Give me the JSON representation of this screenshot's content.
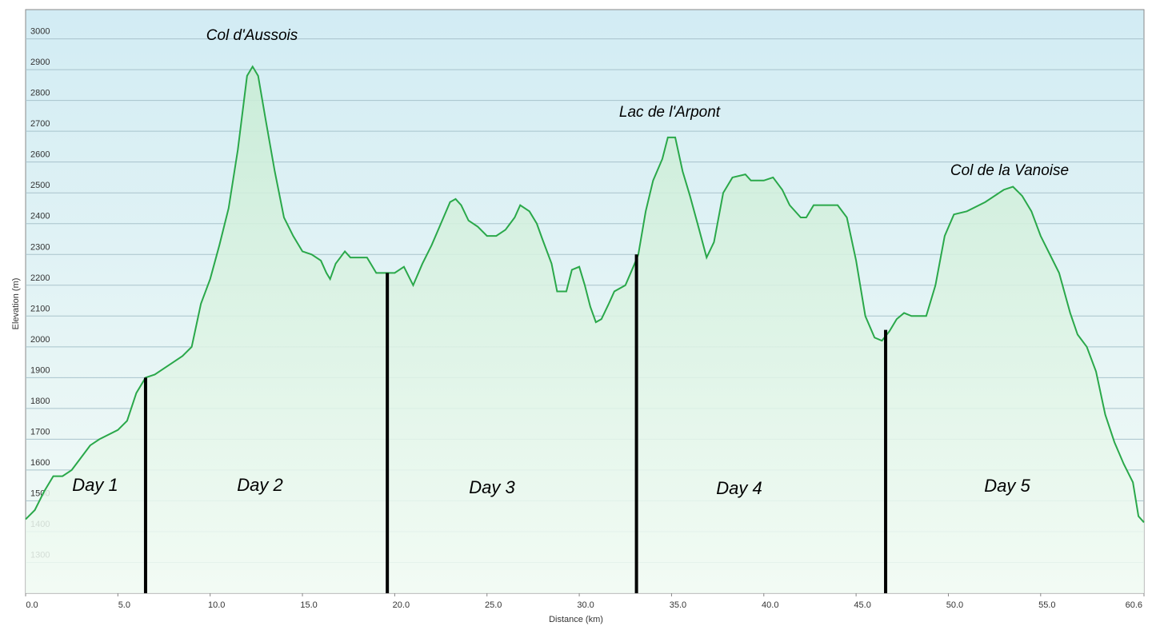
{
  "chart_data": {
    "type": "line",
    "xlabel": "Distance  (km)",
    "ylabel": "Elevation (m)",
    "xlim": [
      0,
      60.6
    ],
    "ylim": [
      1200,
      3095
    ],
    "xticks": [
      {
        "value": 0,
        "label": "0.0"
      },
      {
        "value": 5,
        "label": "5.0"
      },
      {
        "value": 10,
        "label": "10.0"
      },
      {
        "value": 15,
        "label": "15.0"
      },
      {
        "value": 20,
        "label": "20.0"
      },
      {
        "value": 25,
        "label": "25.0"
      },
      {
        "value": 30,
        "label": "30.0"
      },
      {
        "value": 35,
        "label": "35.0"
      },
      {
        "value": 40,
        "label": "40.0"
      },
      {
        "value": 45,
        "label": "45.0"
      },
      {
        "value": 50,
        "label": "50.0"
      },
      {
        "value": 55,
        "label": "55.0"
      },
      {
        "value": 60.6,
        "label": "60.6"
      }
    ],
    "yticks": [
      1300,
      1400,
      1500,
      1600,
      1700,
      1800,
      1900,
      2000,
      2100,
      2200,
      2300,
      2400,
      2500,
      2600,
      2700,
      2800,
      2900,
      3000
    ],
    "grid": true,
    "series": [
      {
        "name": "Elevation",
        "color": "#2aa84a",
        "x": [
          0,
          0.5,
          1,
          1.5,
          2,
          2.5,
          3,
          3.5,
          4,
          5,
          5.5,
          6,
          6.5,
          7,
          8,
          8.5,
          9,
          9.5,
          10,
          10.5,
          11,
          11.5,
          12,
          12.3,
          12.6,
          13,
          13.5,
          14,
          14.5,
          15,
          15.5,
          16,
          16.3,
          16.5,
          16.8,
          17.3,
          17.6,
          18,
          18.5,
          19,
          19.6,
          20,
          20.5,
          21,
          21.5,
          22,
          22.5,
          23,
          23.3,
          23.6,
          24,
          24.5,
          25,
          25.5,
          26,
          26.5,
          26.8,
          27.3,
          27.7,
          28,
          28.5,
          28.8,
          29.3,
          29.6,
          30,
          30.3,
          30.6,
          30.9,
          31.2,
          31.6,
          31.9,
          32.5,
          33,
          33.2,
          33.6,
          34,
          34.5,
          34.8,
          35.2,
          35.6,
          36,
          36.5,
          36.9,
          37.3,
          37.8,
          38.3,
          39,
          39.3,
          40,
          40.5,
          41,
          41.4,
          42,
          42.3,
          42.7,
          44,
          44.5,
          45,
          45.5,
          46,
          46.4,
          46.8,
          47.2,
          47.6,
          48,
          48.8,
          49.3,
          49.8,
          50.3,
          51,
          52,
          53,
          53.5,
          54,
          54.5,
          55,
          55.5,
          56,
          56.6,
          57,
          57.5,
          58,
          58.5,
          59,
          59.5,
          60,
          60.3,
          60.6
        ],
        "values": [
          1440,
          1470,
          1530,
          1580,
          1580,
          1600,
          1640,
          1680,
          1700,
          1730,
          1760,
          1850,
          1900,
          1910,
          1950,
          1970,
          2000,
          2140,
          2220,
          2330,
          2450,
          2640,
          2880,
          2910,
          2880,
          2740,
          2570,
          2420,
          2360,
          2310,
          2300,
          2280,
          2240,
          2220,
          2270,
          2310,
          2290,
          2290,
          2290,
          2240,
          2240,
          2240,
          2260,
          2200,
          2270,
          2330,
          2400,
          2470,
          2480,
          2460,
          2410,
          2390,
          2360,
          2360,
          2380,
          2420,
          2460,
          2440,
          2400,
          2350,
          2270,
          2180,
          2180,
          2250,
          2260,
          2200,
          2130,
          2080,
          2090,
          2140,
          2180,
          2200,
          2270,
          2300,
          2440,
          2540,
          2610,
          2680,
          2680,
          2570,
          2490,
          2380,
          2290,
          2340,
          2500,
          2550,
          2560,
          2540,
          2540,
          2550,
          2510,
          2460,
          2420,
          2420,
          2460,
          2460,
          2420,
          2280,
          2100,
          2030,
          2020,
          2050,
          2090,
          2110,
          2100,
          2100,
          2200,
          2360,
          2430,
          2440,
          2470,
          2510,
          2520,
          2490,
          2440,
          2360,
          2300,
          2240,
          2110,
          2040,
          2000,
          1920,
          1780,
          1690,
          1620,
          1560,
          1450,
          1430
        ]
      }
    ],
    "dividers": [
      {
        "x": 6.5,
        "value": 1900
      },
      {
        "x": 19.6,
        "value": 2240
      },
      {
        "x": 33.1,
        "value": 2300
      },
      {
        "x": 46.6,
        "value": 2055
      }
    ],
    "annotations": [
      "Col d'Aussois",
      "Lac de l'Arpont",
      "Col de la Vanoise"
    ],
    "day_labels": [
      "Day 1",
      "Day 2",
      "Day 3",
      "Day 4",
      "Day 5"
    ]
  }
}
